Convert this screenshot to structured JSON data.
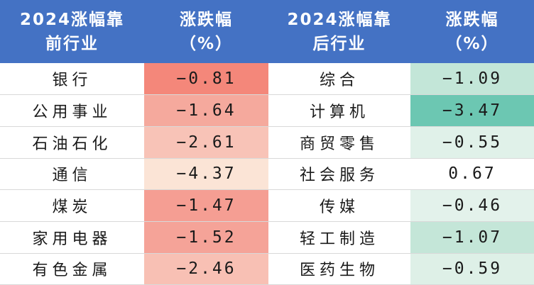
{
  "headers": {
    "before_industry": [
      "2024涨幅靠",
      "前行业"
    ],
    "before_change": [
      "涨跌幅",
      "（%）"
    ],
    "after_industry": [
      "2024涨幅靠",
      "后行业"
    ],
    "after_change": [
      "涨跌幅",
      "（%）"
    ]
  },
  "colors": {
    "header_bg": "#4472c4",
    "header_text": "#ffffff"
  },
  "rows": [
    {
      "before_name": "银行",
      "before_value": "−0.81",
      "before_color": "#f4877a",
      "after_name": "综合",
      "after_value": "−1.09",
      "after_color": "#c3e6d8"
    },
    {
      "before_name": "公用事业",
      "before_value": "−1.64",
      "before_color": "#f5a99d",
      "after_name": "计算机",
      "after_value": "−3.47",
      "after_color": "#6cc7b2"
    },
    {
      "before_name": "石油石化",
      "before_value": "−2.61",
      "before_color": "#f8c3b7",
      "after_name": "商贸零售",
      "after_value": "−0.55",
      "after_color": "#e0f1e9"
    },
    {
      "before_name": "通信",
      "before_value": "−4.37",
      "before_color": "#fbe4d6",
      "after_name": "社会服务",
      "after_value": "0.67",
      "after_color": "#ffffff"
    },
    {
      "before_name": "煤炭",
      "before_value": "−1.47",
      "before_color": "#f59e93",
      "after_name": "传媒",
      "after_value": "−0.46",
      "after_color": "#e3f2eb"
    },
    {
      "before_name": "家用电器",
      "before_value": "−1.52",
      "before_color": "#f5a398",
      "after_name": "轻工制造",
      "after_value": "−1.07",
      "after_color": "#c4e6d8"
    },
    {
      "before_name": "有色金属",
      "before_value": "−2.46",
      "before_color": "#f8c0b4",
      "after_name": "医药生物",
      "after_value": "−0.59",
      "after_color": "#def0e7"
    }
  ]
}
